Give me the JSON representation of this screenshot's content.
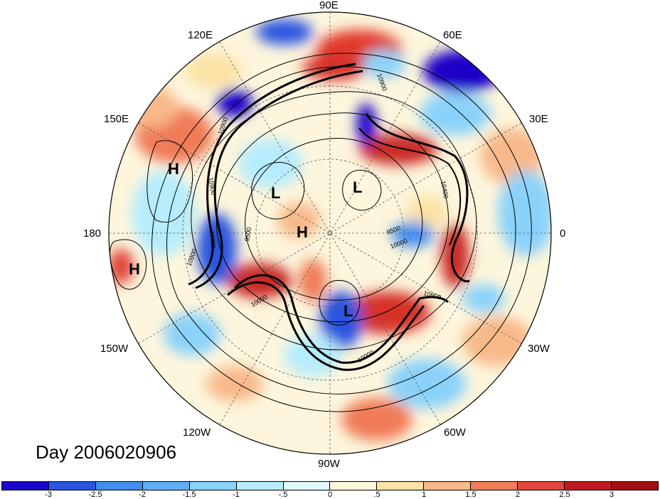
{
  "title": "Day 2006020906",
  "longitude_labels": {
    "lon_90e": "90E",
    "lon_60e": "60E",
    "lon_120e": "120E",
    "lon_150e": "150E",
    "lon_30e": "30E",
    "lon_180": "180",
    "lon_0": "0",
    "lon_150w": "150W",
    "lon_30w": "30W",
    "lon_120w": "120W",
    "lon_60w": "60W",
    "lon_90w": "90W"
  },
  "pressure_systems": [
    {
      "label": "H",
      "name": "high-150e"
    },
    {
      "label": "H",
      "name": "high-180"
    },
    {
      "label": "L",
      "name": "low-siberia"
    },
    {
      "label": "L",
      "name": "low-europe"
    },
    {
      "label": "H",
      "name": "high-pole"
    },
    {
      "label": "L",
      "name": "low-atlantic"
    }
  ],
  "contour_labels": [
    "10900",
    "10900",
    "10900",
    "10900",
    "10000",
    "10000",
    "9500",
    "10000",
    "9500",
    "10900",
    "10000",
    "10400"
  ],
  "colorbar": {
    "colors": [
      "#1a06c8",
      "#2a55e0",
      "#3f8ef0",
      "#5fb0f6",
      "#8ad2fa",
      "#b6ecfc",
      "#e2fafd",
      "#fdf8dc",
      "#fbe2a6",
      "#f8b98a",
      "#f07c58",
      "#e1453b",
      "#c21a24",
      "#a50f15"
    ],
    "ticks": [
      "-3",
      "-2.5",
      "-2",
      "-1.5",
      "-1",
      "-.5",
      "0",
      ".5",
      "1",
      "1.5",
      "2",
      "2.5",
      "3"
    ]
  }
}
